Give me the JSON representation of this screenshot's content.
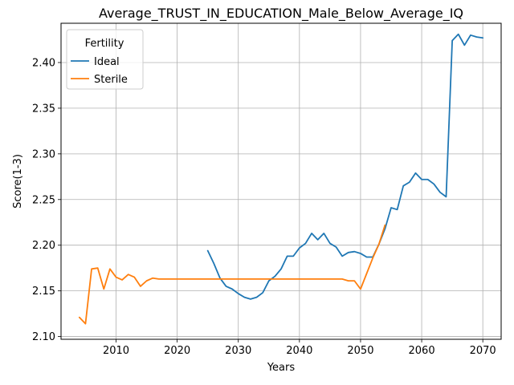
{
  "chart_data": {
    "type": "line",
    "title": "Average_TRUST_IN_EDUCATION_Male_Below_Average_IQ",
    "xlabel": "Years",
    "ylabel": "Score(1-3)",
    "xlim": [
      2001,
      2073
    ],
    "ylim": [
      2.097,
      2.443
    ],
    "xticks": [
      2010,
      2020,
      2030,
      2040,
      2050,
      2060,
      2070
    ],
    "yticks": [
      2.1,
      2.15,
      2.2,
      2.25,
      2.3,
      2.35,
      2.4
    ],
    "xtick_labels": [
      "2010",
      "2020",
      "2030",
      "2040",
      "2050",
      "2060",
      "2070"
    ],
    "ytick_labels": [
      "2.10",
      "2.15",
      "2.20",
      "2.25",
      "2.30",
      "2.35",
      "2.40"
    ],
    "grid": true,
    "legend": {
      "title": "Fertility",
      "placement": "top-left"
    },
    "series": [
      {
        "name": "Ideal",
        "color": "#1f77b4",
        "x": [
          2025,
          2026,
          2027,
          2028,
          2029,
          2030,
          2031,
          2032,
          2033,
          2034,
          2035,
          2036,
          2037,
          2038,
          2039,
          2040,
          2041,
          2042,
          2043,
          2044,
          2045,
          2046,
          2047,
          2048,
          2049,
          2050,
          2051,
          2052,
          2053,
          2054,
          2055,
          2056,
          2057,
          2058,
          2059,
          2060,
          2061,
          2062,
          2063,
          2064,
          2065,
          2066,
          2067,
          2068,
          2069,
          2070
        ],
        "values": [
          2.194,
          2.18,
          2.164,
          2.155,
          2.152,
          2.147,
          2.143,
          2.141,
          2.143,
          2.148,
          2.161,
          2.166,
          2.174,
          2.188,
          2.188,
          2.197,
          2.202,
          2.213,
          2.206,
          2.213,
          2.202,
          2.198,
          2.188,
          2.192,
          2.193,
          2.191,
          2.187,
          2.187,
          2.201,
          2.218,
          2.241,
          2.239,
          2.265,
          2.269,
          2.279,
          2.272,
          2.272,
          2.267,
          2.258,
          2.253,
          2.424,
          2.431,
          2.419,
          2.43,
          2.428,
          2.427
        ]
      },
      {
        "name": "Sterile",
        "color": "#ff7f0e",
        "x": [
          2004,
          2005,
          2006,
          2007,
          2008,
          2009,
          2010,
          2011,
          2012,
          2013,
          2014,
          2015,
          2016,
          2017,
          2018,
          2019,
          2020,
          2021,
          2022,
          2023,
          2024,
          2025,
          2026,
          2027,
          2028,
          2029,
          2030,
          2031,
          2032,
          2033,
          2034,
          2035,
          2036,
          2037,
          2038,
          2039,
          2040,
          2041,
          2042,
          2043,
          2044,
          2045,
          2046,
          2047,
          2048,
          2049,
          2050,
          2051,
          2052,
          2053,
          2054
        ],
        "values": [
          2.121,
          2.114,
          2.174,
          2.175,
          2.152,
          2.174,
          2.165,
          2.162,
          2.168,
          2.165,
          2.155,
          2.161,
          2.164,
          2.163,
          2.163,
          2.163,
          2.163,
          2.163,
          2.163,
          2.163,
          2.163,
          2.163,
          2.163,
          2.163,
          2.163,
          2.163,
          2.163,
          2.163,
          2.163,
          2.163,
          2.163,
          2.163,
          2.163,
          2.163,
          2.163,
          2.163,
          2.163,
          2.163,
          2.163,
          2.163,
          2.163,
          2.163,
          2.163,
          2.163,
          2.161,
          2.161,
          2.152,
          2.169,
          2.186,
          2.201,
          2.222
        ]
      }
    ]
  }
}
